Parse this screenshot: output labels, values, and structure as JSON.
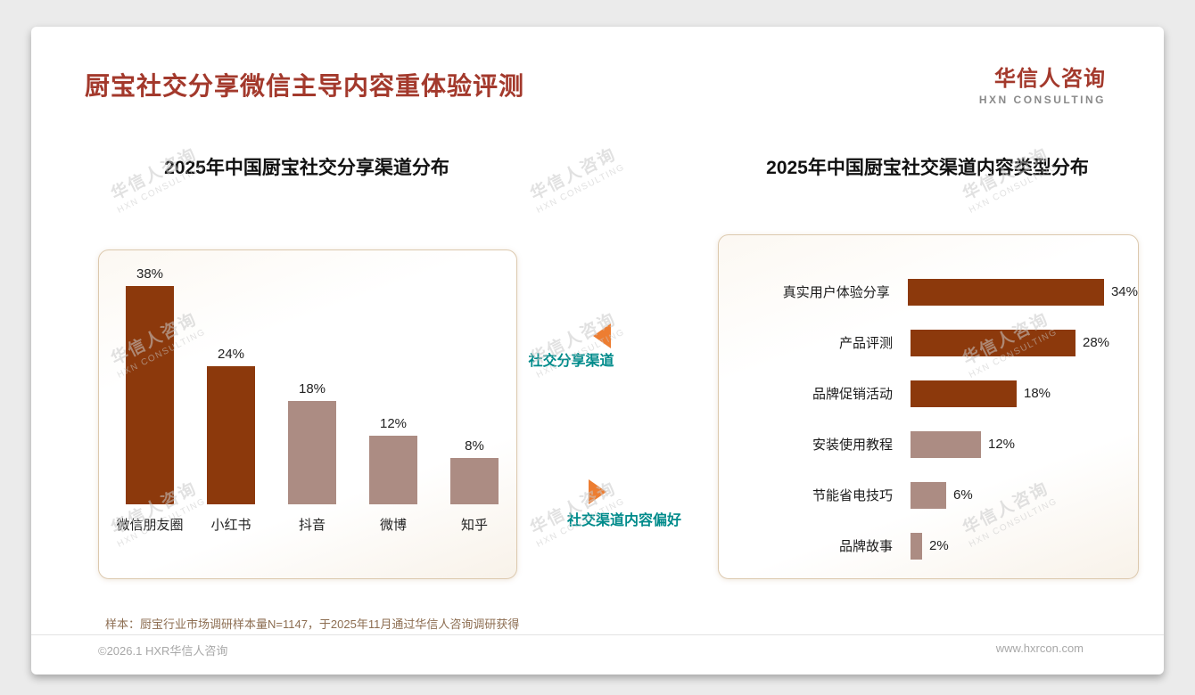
{
  "page": {
    "title": "厨宝社交分享微信主导内容重体验评测",
    "logo": {
      "cn": "华信人咨询",
      "en": "HXN CONSULTING"
    },
    "watermark": {
      "cn": "华信人咨询",
      "en": "HXN CONSULTING"
    },
    "footnote": "样本：厨宝行业市场调研样本量N=1147，于2025年11月通过华信人咨询调研获得",
    "footer": {
      "left": "©2026.1 HXR华信人咨询",
      "right": "www.hxrcon.com"
    }
  },
  "annotations": {
    "left_label": "社交分享渠道",
    "right_label": "社交渠道内容偏好"
  },
  "colors": {
    "accent_red": "#A3392C",
    "bar_dark": "#8C390C",
    "bar_light": "#AC8C83",
    "annotation_teal": "#008B8B",
    "arrow_orange": "#ED7D31",
    "panel_border": "#DCC9AE"
  },
  "chart_data": [
    {
      "type": "bar",
      "orientation": "vertical",
      "title": "2025年中国厨宝社交分享渠道分布",
      "categories": [
        "微信朋友圈",
        "小红书",
        "抖音",
        "微博",
        "知乎"
      ],
      "values": [
        38,
        24,
        18,
        12,
        8
      ],
      "unit": "%",
      "ylim": [
        0,
        40
      ],
      "bar_styles": [
        "dark",
        "dark",
        "light",
        "light",
        "light"
      ],
      "grid": false,
      "legend": false
    },
    {
      "type": "bar",
      "orientation": "horizontal",
      "title": "2025年中国厨宝社交渠道内容类型分布",
      "categories": [
        "真实用户体验分享",
        "产品评测",
        "品牌促销活动",
        "安装使用教程",
        "节能省电技巧",
        "品牌故事"
      ],
      "values": [
        34,
        28,
        18,
        12,
        6,
        2
      ],
      "unit": "%",
      "xlim": [
        0,
        40
      ],
      "bar_styles": [
        "dark",
        "dark",
        "dark",
        "light",
        "light",
        "light"
      ],
      "grid": false,
      "legend": false
    }
  ]
}
